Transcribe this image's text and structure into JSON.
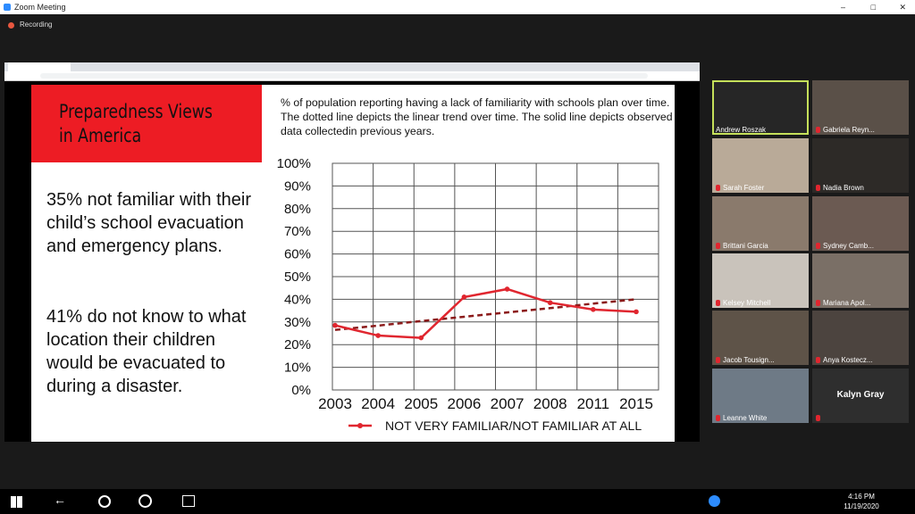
{
  "window": {
    "title": "Zoom Meeting",
    "recording": "Recording"
  },
  "slide": {
    "title": "Preparedness Views in America",
    "paragraphs": [
      "35% not familiar with their child’s school evacuation and emergency plans.",
      "41% do not know to what location their children would be evacuated to during a disaster."
    ]
  },
  "chart_data": {
    "type": "line",
    "title": "% of population reporting having a lack of familiarity with schools plan over time. The dotted line depicts the linear trend over time. The solid line depicts observed data collectedin previous  years.",
    "categories": [
      "2003",
      "2004",
      "2005",
      "2006",
      "2007",
      "2008",
      "2011",
      "2015"
    ],
    "series": [
      {
        "name": "NOT VERY FAMILIAR/NOT FAMILIAR AT ALL",
        "color": "#e0262f",
        "values": [
          28.5,
          24,
          23,
          41,
          44.5,
          38.5,
          35.5,
          34.5
        ]
      }
    ],
    "trend": {
      "color": "#8b1a1a",
      "values": [
        26.5,
        28.4,
        30.4,
        32.3,
        34.2,
        36.1,
        38.1,
        40
      ]
    },
    "ylim": [
      0,
      100
    ],
    "yticks": [
      {
        "value": 0,
        "label": "0%"
      },
      {
        "value": 10,
        "label": "10%"
      },
      {
        "value": 20,
        "label": "20%"
      },
      {
        "value": 30,
        "label": "30%"
      },
      {
        "value": 40,
        "label": "40%"
      },
      {
        "value": 50,
        "label": "50%"
      },
      {
        "value": 60,
        "label": "60%"
      },
      {
        "value": 70,
        "label": "70%"
      },
      {
        "value": 80,
        "label": "80%"
      },
      {
        "value": 90,
        "label": "90%"
      },
      {
        "value": 100,
        "label": "100%"
      }
    ],
    "grid": true,
    "legend": "bottom"
  },
  "participants": [
    "Andrew Roszak",
    "Gabriela Reyn...",
    "Sarah Foster",
    "Nadia Brown",
    "Brittani Garcia",
    "Sydney Camb...",
    "Kelsey Mitchell",
    "Mariana Apol...",
    "Jacob Tousign...",
    "Anya Kostecz...",
    "Leanne White",
    "Kalyn Gray"
  ],
  "taskbar": {
    "time": "4:16 PM",
    "date": "11/19/2020"
  }
}
